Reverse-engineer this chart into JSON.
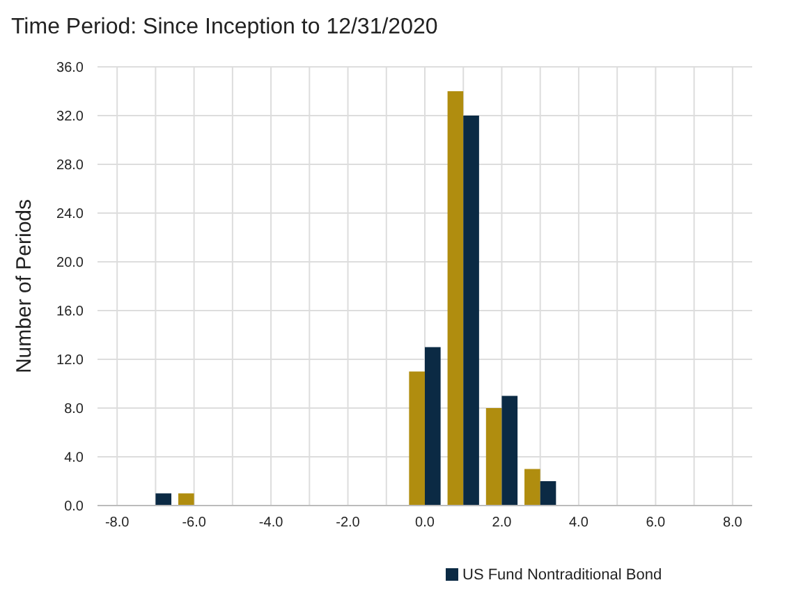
{
  "chart_data": {
    "type": "bar",
    "title": "Time Period: Since Inception to 12/31/2020",
    "ylabel": "Number of Periods",
    "categories": [
      "-8.0",
      null,
      "-6.0",
      null,
      "-4.0",
      null,
      "-2.0",
      null,
      "0.0",
      null,
      "2.0",
      null,
      "4.0",
      null,
      "6.0",
      null,
      "8.0"
    ],
    "series": [
      {
        "color": "#b08d0f",
        "values": [
          0,
          0,
          1,
          0,
          0,
          0,
          0,
          0,
          11,
          34,
          8,
          3,
          0,
          0,
          0,
          0,
          0
        ]
      },
      {
        "name": "US Fund Nontraditional Bond",
        "color": "#0b2a44",
        "values": [
          0,
          1,
          0,
          0,
          0,
          0,
          0,
          0,
          13,
          32,
          9,
          2,
          0,
          0,
          0,
          0,
          0
        ]
      }
    ],
    "ylim": [
      0,
      36
    ],
    "yticks": [
      {
        "value": 0,
        "label": "0.0"
      },
      {
        "value": 4,
        "label": "4.0"
      },
      {
        "value": 8,
        "label": "8.0"
      },
      {
        "value": 12,
        "label": "12.0"
      },
      {
        "value": 16,
        "label": "16.0"
      },
      {
        "value": 20,
        "label": "20.0"
      },
      {
        "value": 24,
        "label": "24.0"
      },
      {
        "value": 28,
        "label": "28.0"
      },
      {
        "value": 32,
        "label": "32.0"
      },
      {
        "value": 36,
        "label": "36.0"
      }
    ],
    "grid": true,
    "legend": "bottom"
  }
}
